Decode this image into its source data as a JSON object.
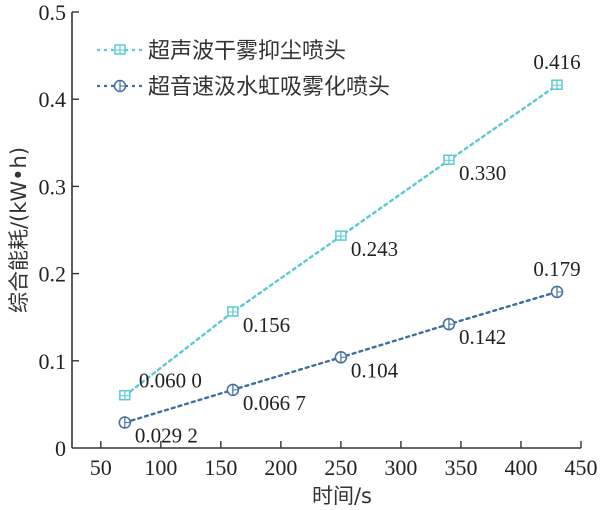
{
  "chart_data": {
    "type": "line",
    "title": "",
    "xlabel": "时间/s",
    "ylabel": "综合能耗/(kW•h)",
    "xlim": [
      26,
      450
    ],
    "ylim": [
      0,
      0.5
    ],
    "x_ticks": [
      "50",
      "100",
      "150",
      "200",
      "250",
      "300",
      "350",
      "400",
      "450"
    ],
    "y_ticks": [
      "0",
      "0.1",
      "0.2",
      "0.3",
      "0.4",
      "0.5"
    ],
    "grid": false,
    "legend_position": "upper left",
    "x": [
      70,
      160,
      250,
      340,
      430
    ],
    "series": [
      {
        "name": "超声波干雾抑尘喷头",
        "values": [
          0.06,
          0.156,
          0.243,
          0.33,
          0.416
        ],
        "labels": [
          "0.060 0",
          "0.156",
          "0.243",
          "0.330",
          "0.416"
        ],
        "color": "#5bc8d6",
        "marker": "square"
      },
      {
        "name": "超音速汲水虹吸雾化喷头",
        "values": [
          0.0292,
          0.0667,
          0.104,
          0.142,
          0.179
        ],
        "labels": [
          "0.029 2",
          "0.066 7",
          "0.104",
          "0.142",
          "0.179"
        ],
        "color": "#3e6f9e",
        "marker": "circle"
      }
    ]
  }
}
